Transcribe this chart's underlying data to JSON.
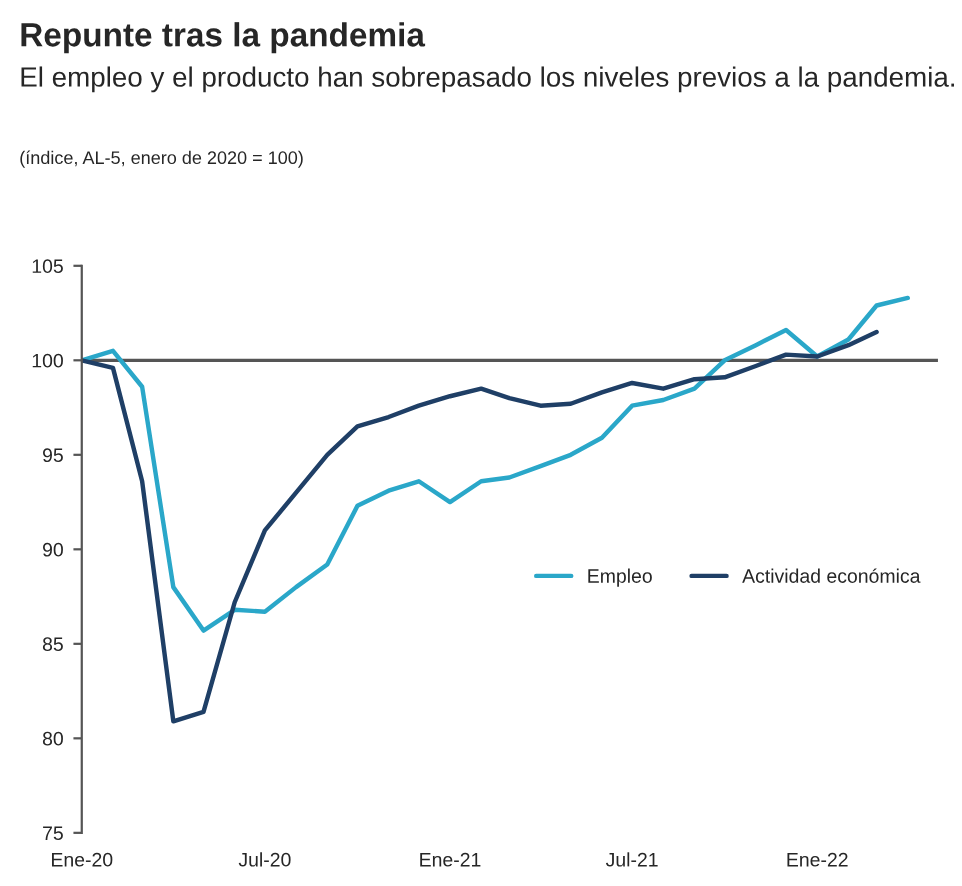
{
  "chart_data": {
    "type": "line",
    "title": "Repunte tras la pandemia",
    "subtitle": "El empleo y el producto han sobrepasado los niveles previos a la pandemia.",
    "annotations": [
      "(índice, AL-5, enero de 2020 = 100)"
    ],
    "x": [
      "2020-01",
      "2020-02",
      "2020-03",
      "2020-04",
      "2020-05",
      "2020-06",
      "2020-07",
      "2020-08",
      "2020-09",
      "2020-10",
      "2020-11",
      "2020-12",
      "2021-01",
      "2021-02",
      "2021-03",
      "2021-04",
      "2021-05",
      "2021-06",
      "2021-07",
      "2021-08",
      "2021-09",
      "2021-10",
      "2021-11",
      "2021-12",
      "2022-01",
      "2022-02",
      "2022-03",
      "2022-04"
    ],
    "series": [
      {
        "name": "Empleo",
        "color": "#2aa7c9",
        "values": [
          100,
          100.5,
          98.6,
          88,
          85.7,
          86.8,
          86.7,
          88.0,
          89.2,
          92.3,
          93.1,
          93.6,
          92.5,
          93.6,
          93.8,
          94.4,
          95.0,
          95.9,
          97.6,
          97.9,
          98.5,
          100.0,
          100.8,
          101.6,
          100.2,
          101.1,
          102.9,
          103.3
        ]
      },
      {
        "name": "Actividad económica",
        "color": "#1f3f66",
        "values": [
          100,
          99.6,
          93.6,
          80.9,
          81.4,
          87.2,
          91.0,
          93.0,
          95.0,
          96.5,
          97.0,
          97.6,
          98.1,
          98.5,
          98.0,
          97.6,
          97.7,
          98.3,
          98.8,
          98.5,
          99.0,
          99.1,
          99.7,
          100.3,
          100.2,
          100.8,
          101.5,
          null
        ]
      }
    ],
    "xlim": [
      "2020-01",
      "2022-05"
    ],
    "xticks": [
      {
        "value": "2020-01",
        "label": "Ene-20"
      },
      {
        "value": "2020-07",
        "label": "Jul-20"
      },
      {
        "value": "2021-01",
        "label": "Ene-21"
      },
      {
        "value": "2021-07",
        "label": "Jul-21"
      },
      {
        "value": "2022-01",
        "label": "Ene-22"
      }
    ],
    "ylim": [
      75,
      105
    ],
    "yticks": [
      75,
      80,
      85,
      90,
      95,
      100,
      105
    ],
    "ref_lines": [
      {
        "axis": "y",
        "value": 100,
        "label": null,
        "color": "#555555"
      }
    ],
    "grid": false,
    "legend": "right",
    "marker": "none",
    "line_style": "solid"
  }
}
